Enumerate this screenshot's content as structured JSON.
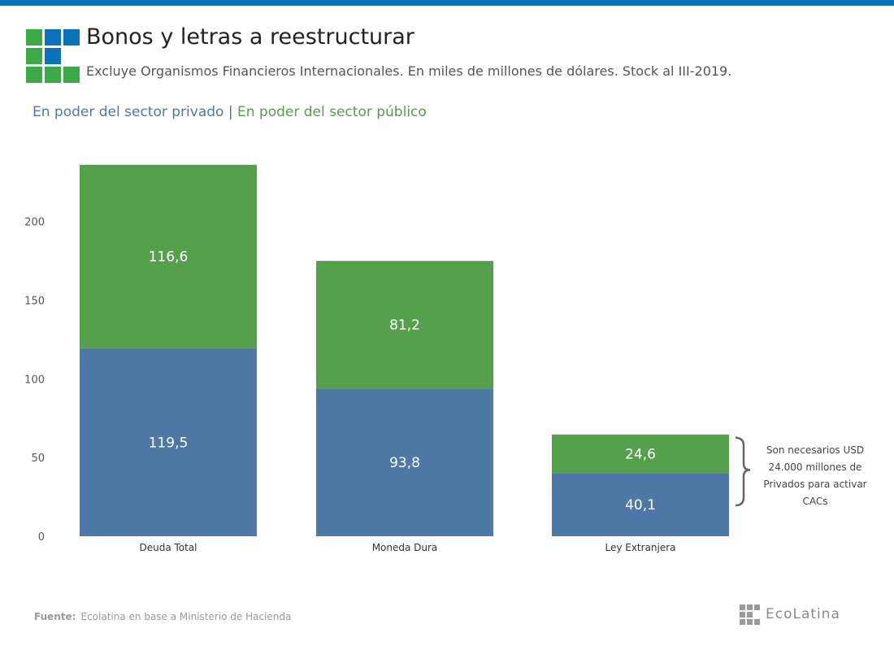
{
  "header": {
    "title": "Bonos y letras a reestructurar",
    "subtitle": "Excluye Organismos Financieros Internacionales. En miles de millones de dólares. Stock al III-2019."
  },
  "legend": {
    "private_label": "En poder del sector privado",
    "separator": "|",
    "public_label": "En poder del sector público"
  },
  "colors": {
    "top_bar": "#0a72ba",
    "private": "#4e78a6",
    "public": "#55a04b",
    "logo_blue": "#0a72ba",
    "logo_green": "#3aaa47"
  },
  "chart_data": {
    "type": "bar",
    "stacked": true,
    "categories": [
      "Deuda Total",
      "Moneda Dura",
      "Ley Extranjera"
    ],
    "series": [
      {
        "name": "En poder del sector privado",
        "values": [
          119.5,
          93.8,
          40.1
        ],
        "labels": [
          "119,5",
          "93,8",
          "40,1"
        ]
      },
      {
        "name": "En poder del sector público",
        "values": [
          116.6,
          81.2,
          24.6
        ],
        "labels": [
          "116,6",
          "81,2",
          "24,6"
        ]
      }
    ],
    "ylim": [
      0,
      236
    ],
    "yticks": [
      0,
      50,
      100,
      150,
      200
    ],
    "grid": false,
    "legend_position": "top-left",
    "annotation": {
      "category": "Ley Extranjera",
      "lines": [
        "Son necesarios USD",
        "24.000 millones de",
        "Privados para activar",
        "CACs"
      ]
    }
  },
  "footer": {
    "source_key": "Fuente:",
    "source_text": "Ecolatina en base a Ministerio de Hacienda",
    "logo_text": "EcoLatina"
  }
}
